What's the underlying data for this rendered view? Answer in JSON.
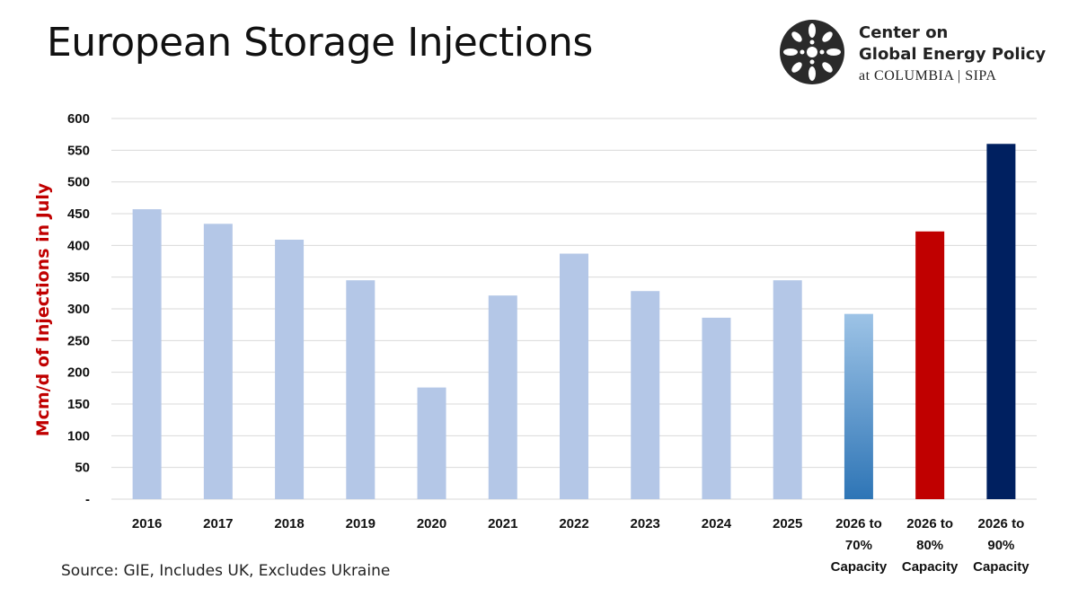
{
  "title": "European Storage Injections",
  "logo": {
    "line1": "Center on",
    "line2": "Global Energy Policy",
    "line3": "at COLUMBIA | SIPA"
  },
  "source": "Source: GIE, Includes UK, Excludes Ukraine",
  "colors": {
    "historical": "#b4c7e7",
    "gradient_top": "#9dc3e6",
    "gradient_bottom": "#2e75b6",
    "red": "#c00000",
    "navy": "#002060",
    "ylabel": "#c00000",
    "grid": "#d9d9d9"
  },
  "chart_data": {
    "type": "bar",
    "ylabel": "Mcm/d  of Injections in July",
    "ylim": [
      0,
      600
    ],
    "yticks": [
      {
        "value": 0,
        "label": "-"
      },
      {
        "value": 50,
        "label": "50"
      },
      {
        "value": 100,
        "label": "100"
      },
      {
        "value": 150,
        "label": "150"
      },
      {
        "value": 200,
        "label": "200"
      },
      {
        "value": 250,
        "label": "250"
      },
      {
        "value": 300,
        "label": "300"
      },
      {
        "value": 350,
        "label": "350"
      },
      {
        "value": 400,
        "label": "400"
      },
      {
        "value": 450,
        "label": "450"
      },
      {
        "value": 500,
        "label": "500"
      },
      {
        "value": 550,
        "label": "550"
      },
      {
        "value": 600,
        "label": "600"
      }
    ],
    "grid": true,
    "categories": [
      [
        "2016"
      ],
      [
        "2017"
      ],
      [
        "2018"
      ],
      [
        "2019"
      ],
      [
        "2020"
      ],
      [
        "2021"
      ],
      [
        "2022"
      ],
      [
        "2023"
      ],
      [
        "2024"
      ],
      [
        "2025"
      ],
      [
        "2026 to",
        "70%",
        "Capacity"
      ],
      [
        "2026 to",
        "80%",
        "Capacity"
      ],
      [
        "2026 to",
        "90%",
        "Capacity"
      ]
    ],
    "values": [
      457,
      434,
      409,
      345,
      176,
      321,
      387,
      328,
      286,
      345,
      292,
      422,
      560
    ],
    "bar_colors": [
      "historical",
      "historical",
      "historical",
      "historical",
      "historical",
      "historical",
      "historical",
      "historical",
      "historical",
      "historical",
      "gradient",
      "red",
      "navy"
    ]
  }
}
